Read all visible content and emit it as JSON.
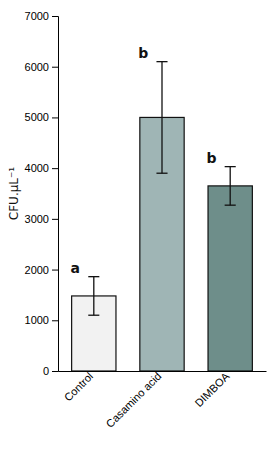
{
  "chart_data": {
    "type": "bar",
    "categories": [
      "Control",
      "Casamino acid",
      "DIMBOA"
    ],
    "values": [
      1480,
      5000,
      3650
    ],
    "errors": [
      380,
      1100,
      380
    ],
    "colors": [
      "#f2f2f2",
      "#9fb5b5",
      "#6e8e8a"
    ],
    "significance_labels": [
      "a",
      "b",
      "b"
    ],
    "ylabel": "CFU.μL⁻¹",
    "ylim": [
      0,
      7000
    ],
    "yticks": [
      0,
      1000,
      2000,
      3000,
      4000,
      5000,
      6000,
      7000
    ]
  }
}
